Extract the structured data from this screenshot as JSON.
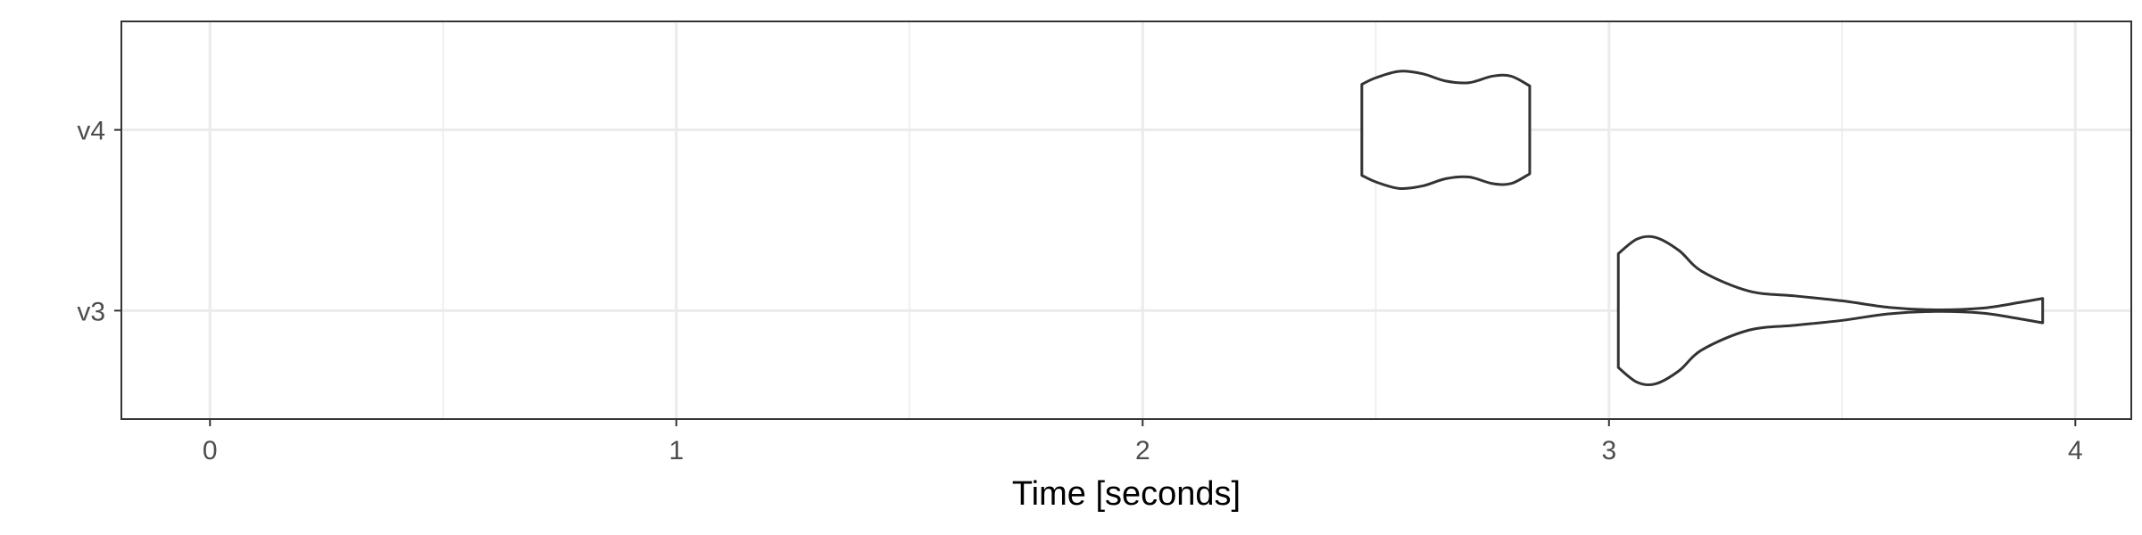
{
  "chart_data": {
    "type": "violin",
    "title": "",
    "xlabel": "Time [seconds]",
    "ylabel": "",
    "xlim": [
      -0.19,
      4.12
    ],
    "x_ticks": [
      0,
      1,
      2,
      3,
      4
    ],
    "x_tick_labels": [
      "0",
      "1",
      "2",
      "3",
      "4"
    ],
    "categories": [
      "v4",
      "v3"
    ],
    "grid": true,
    "theme": "bw",
    "series": [
      {
        "category": "v4",
        "profile": [
          [
            2.47,
            0.56
          ],
          [
            2.5,
            0.64
          ],
          [
            2.55,
            0.72
          ],
          [
            2.6,
            0.69
          ],
          [
            2.65,
            0.6
          ],
          [
            2.7,
            0.58
          ],
          [
            2.75,
            0.66
          ],
          [
            2.79,
            0.66
          ],
          [
            2.83,
            0.54
          ]
        ]
      },
      {
        "category": "v3",
        "profile": [
          [
            3.02,
            0.7
          ],
          [
            3.06,
            0.88
          ],
          [
            3.1,
            0.9
          ],
          [
            3.15,
            0.74
          ],
          [
            3.2,
            0.48
          ],
          [
            3.3,
            0.24
          ],
          [
            3.4,
            0.18
          ],
          [
            3.5,
            0.12
          ],
          [
            3.6,
            0.04
          ],
          [
            3.7,
            0.01
          ],
          [
            3.8,
            0.03
          ],
          [
            3.88,
            0.1
          ],
          [
            3.93,
            0.15
          ]
        ]
      }
    ]
  }
}
